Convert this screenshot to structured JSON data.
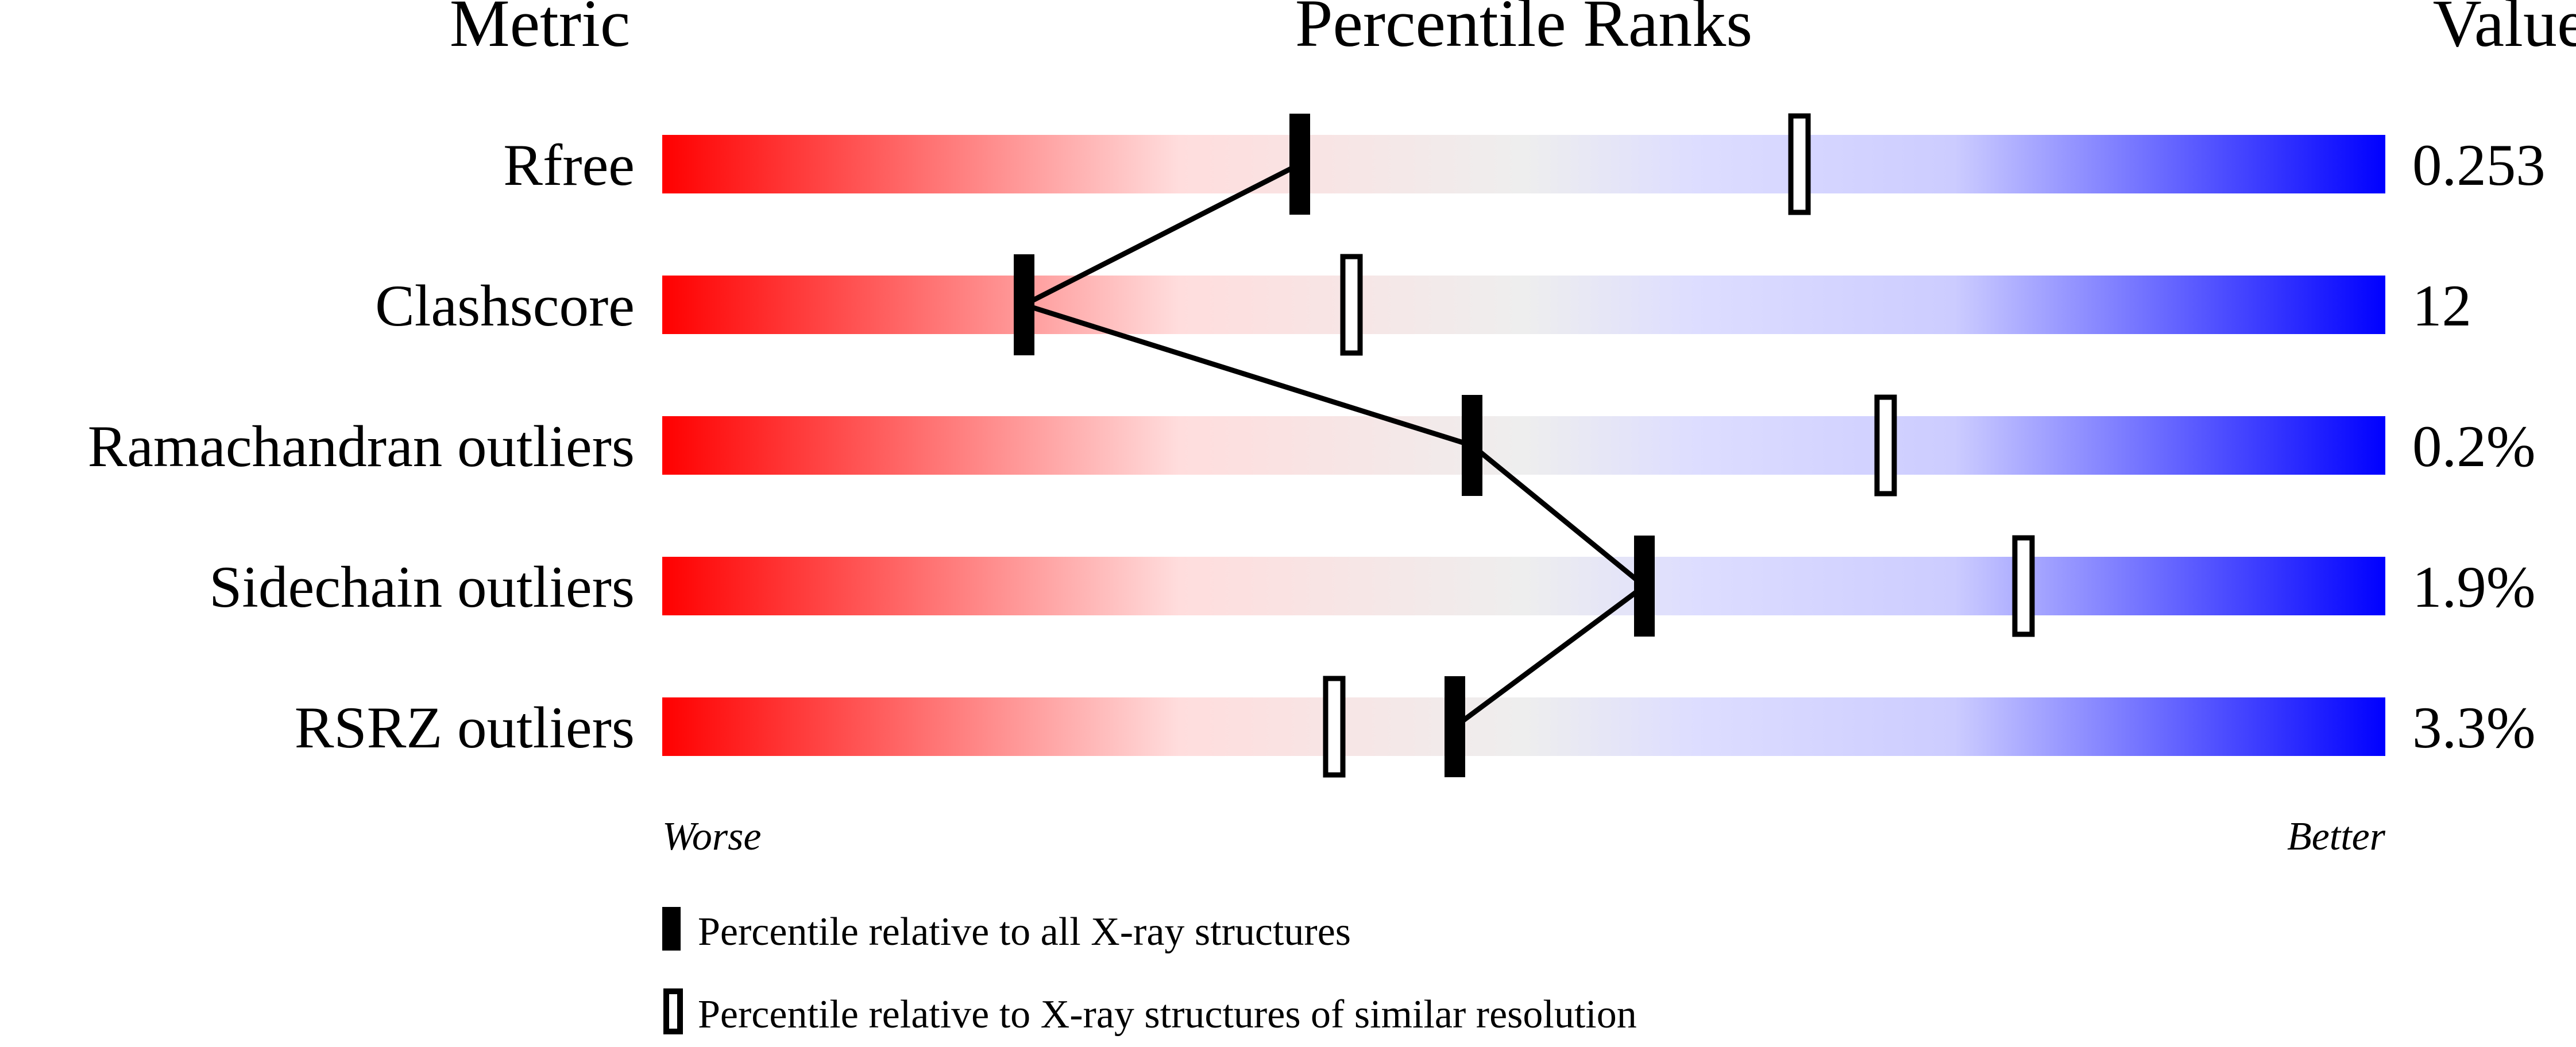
{
  "chart_data": {
    "type": "bar",
    "headers": {
      "metric": "Metric",
      "ranks": "Percentile Ranks",
      "value": "Value"
    },
    "xlim": [
      0,
      100
    ],
    "axis_labels": {
      "left": "Worse",
      "right": "Better"
    },
    "colors": {
      "worse": "#ff0000",
      "mid": "#eeeeee",
      "better": "#0000ff"
    },
    "series": [
      {
        "name": "Percentile relative to all X-ray structures",
        "marker": "filled"
      },
      {
        "name": "Percentile relative to X-ray structures of similar resolution",
        "marker": "open"
      }
    ],
    "rows": [
      {
        "metric": "Rfree",
        "value": "0.253",
        "all": 37,
        "similar": 66
      },
      {
        "metric": "Clashscore",
        "value": "12",
        "all": 21,
        "similar": 40
      },
      {
        "metric": "Ramachandran outliers",
        "value": "0.2%",
        "all": 47,
        "similar": 71
      },
      {
        "metric": "Sidechain outliers",
        "value": "1.9%",
        "all": 57,
        "similar": 79
      },
      {
        "metric": "RSRZ outliers",
        "value": "3.3%",
        "all": 46,
        "similar": 39
      }
    ]
  }
}
